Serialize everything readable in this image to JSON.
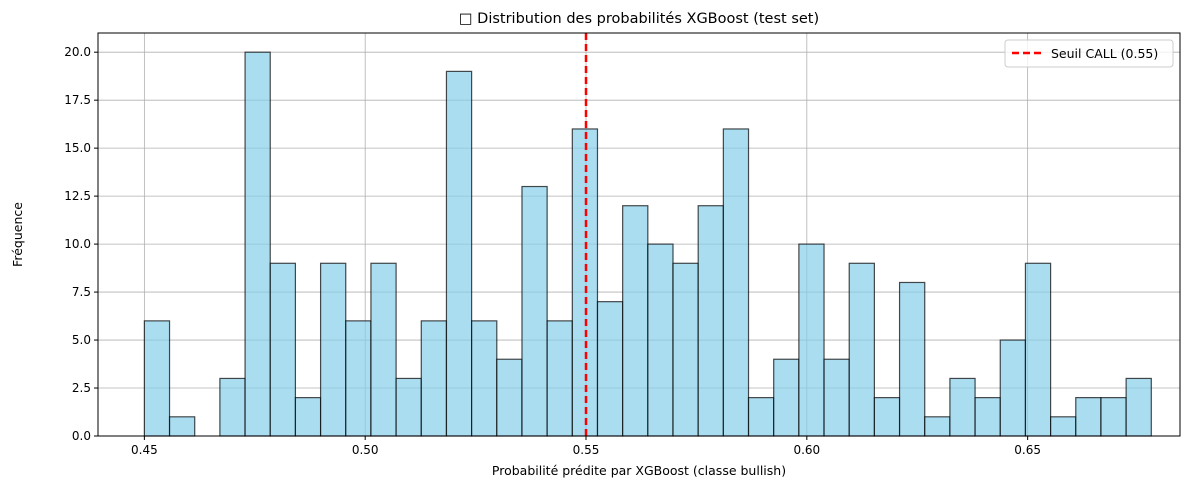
{
  "chart_data": {
    "type": "bar",
    "title": "□ Distribution des probabilités XGBoost (test set)",
    "xlabel": "Probabilité prédite par XGBoost (classe bullish)",
    "ylabel": "Fréquence",
    "xlim": [
      0.4395,
      0.6845
    ],
    "ylim": [
      0,
      21
    ],
    "x_ticks": [
      0.45,
      0.5,
      0.55,
      0.6,
      0.65
    ],
    "x_tick_labels": [
      "0.45",
      "0.50",
      "0.55",
      "0.60",
      "0.65"
    ],
    "y_ticks": [
      0,
      2.5,
      5,
      7.5,
      10,
      12.5,
      15,
      17.5,
      20
    ],
    "y_tick_labels": [
      "0.0",
      "2.5",
      "5.0",
      "7.5",
      "10.0",
      "12.5",
      "15.0",
      "17.5",
      "20.0"
    ],
    "grid": true,
    "bins": {
      "start": 0.45,
      "width": 0.0057,
      "counts": [
        6,
        1,
        0,
        3,
        20,
        9,
        2,
        9,
        6,
        9,
        3,
        6,
        19,
        6,
        4,
        13,
        6,
        16,
        7,
        12,
        10,
        9,
        12,
        16,
        2,
        4,
        10,
        4,
        9,
        2,
        8,
        1,
        3,
        2,
        5,
        9,
        1,
        2,
        2,
        3
      ]
    },
    "bar_color": "#87ceeb",
    "threshold": {
      "x": 0.55,
      "label": "Seuil CALL (0.55)",
      "color": "#ff0000"
    },
    "legend": {
      "position": "top-right",
      "entries": [
        "Seuil CALL (0.55)"
      ]
    }
  }
}
